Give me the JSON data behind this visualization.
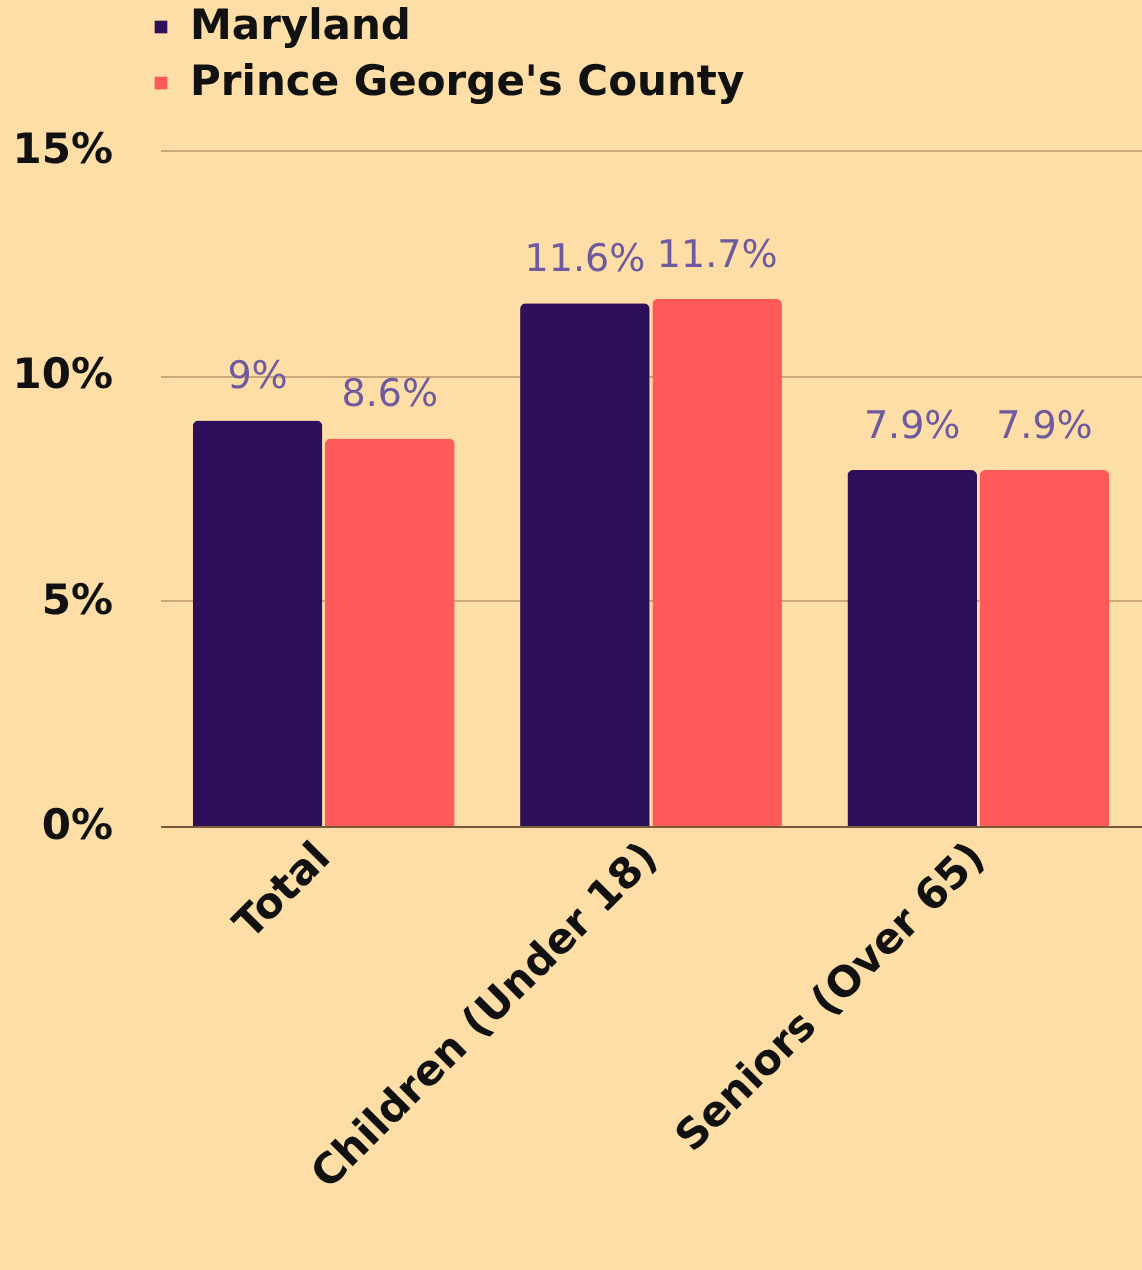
{
  "chart_data": {
    "type": "bar",
    "categories": [
      "Total",
      "Children (Under 18)",
      "Seniors (Over 65)"
    ],
    "series": [
      {
        "name": "Maryland",
        "color": "#2e0f59",
        "values": [
          9,
          11.6,
          7.9
        ],
        "value_labels": [
          "9%",
          "11.6%",
          "7.9%"
        ]
      },
      {
        "name": "Prince George's County",
        "color": "#ff5a5a",
        "values": [
          8.6,
          11.7,
          7.9
        ],
        "value_labels": [
          "8.6%",
          "11.7%",
          "7.9%"
        ]
      }
    ],
    "ylim": [
      0,
      15
    ],
    "yticks": [
      {
        "value": 0,
        "label": "0%"
      },
      {
        "value": 5,
        "label": "5%"
      },
      {
        "value": 10,
        "label": "10%"
      },
      {
        "value": 15,
        "label": "15%"
      }
    ],
    "grid": "y",
    "legend": "top left"
  }
}
